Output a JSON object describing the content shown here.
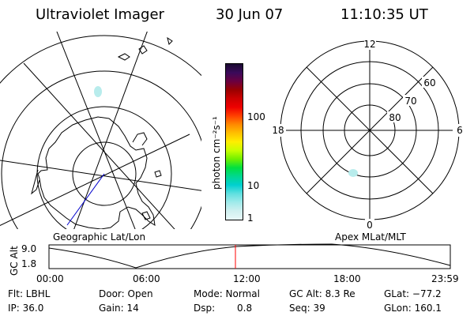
{
  "header": {
    "instrument": "Ultraviolet Imager",
    "date": "30 Jun 07",
    "time": "11:10:35 UT"
  },
  "colorbar": {
    "label": "photon cm⁻²s⁻¹",
    "ticks": [
      "100",
      "10",
      "1"
    ],
    "colors_top_to_bottom": [
      "#1a0a30",
      "#3a0a5a",
      "#6a0040",
      "#9a0000",
      "#cc0000",
      "#ee0000",
      "#ff4000",
      "#ff8a00",
      "#ffc000",
      "#ffee00",
      "#c8ff00",
      "#70f000",
      "#00e040",
      "#00d890",
      "#00d0d0",
      "#60e0e0",
      "#a0eaea",
      "#d0f0f0",
      "#e8f8f8"
    ]
  },
  "left_panel": {
    "caption": "Geographic Lat/Lon"
  },
  "right_panel": {
    "caption": "Apex MLat/MLT",
    "mlt_labels": {
      "top": "12",
      "left": "18",
      "right": "6",
      "bottom": "0"
    },
    "lat_labels": [
      "60",
      "70",
      "80"
    ]
  },
  "altitude_plot": {
    "ylabel": "GC Alt",
    "yticks": [
      "9.0",
      "1.8"
    ],
    "xticks": [
      "00:00",
      "06:00",
      "12:00",
      "18:00",
      "23:59"
    ]
  },
  "status": {
    "row1": {
      "flt": "Flt: LBHL",
      "door": "Door: Open",
      "mode": "Mode: Normal",
      "gcalt": "GC Alt: 8.3 Re",
      "glat": "GLat: −77.2"
    },
    "row2": {
      "ip": "IP: 36.0",
      "gain": "Gain: 14",
      "dsp_label": "Dsp:",
      "dsp_value": "0.8",
      "seq": "Seq: 39",
      "glon": "GLon: 160.1"
    }
  },
  "accent_colors": {
    "time_marker": "#ff0000",
    "track_line": "#0000cc"
  }
}
